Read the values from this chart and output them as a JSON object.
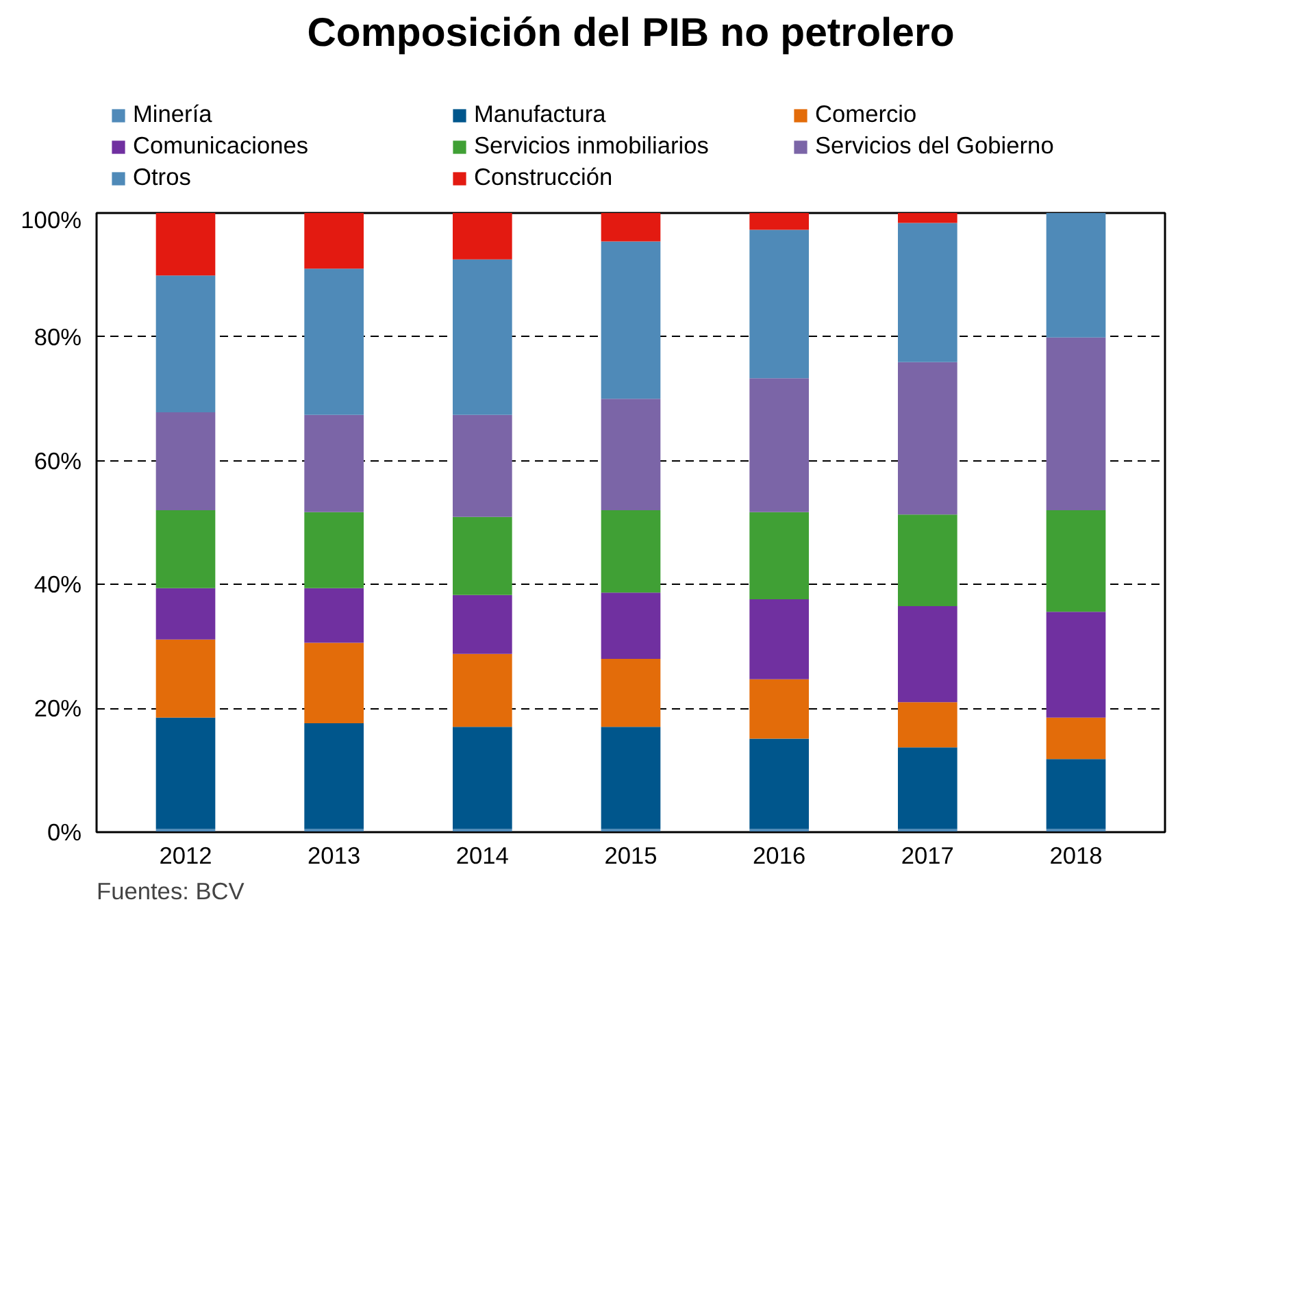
{
  "chart_data": {
    "type": "bar",
    "stacked": true,
    "title": "Composición del PIB no petrolero",
    "categories": [
      "2012",
      "2013",
      "2014",
      "2015",
      "2016",
      "2017",
      "2018"
    ],
    "series": [
      {
        "name": "Minería",
        "color": "#508ab9",
        "values": [
          0.5,
          0.5,
          0.5,
          0.5,
          0.5,
          0.5,
          0.5
        ]
      },
      {
        "name": "Manufactura",
        "color": "#00568c",
        "values": [
          18.0,
          17.1,
          16.5,
          16.5,
          14.6,
          13.2,
          11.3
        ]
      },
      {
        "name": "Comercio",
        "color": "#e36c0a",
        "values": [
          12.6,
          13.0,
          11.8,
          11.0,
          9.6,
          7.3,
          6.7
        ]
      },
      {
        "name": "Comunicaciones",
        "color": "#7030a0",
        "values": [
          8.3,
          8.8,
          9.5,
          10.7,
          12.9,
          15.5,
          17.1
        ]
      },
      {
        "name": "Servicios inmobiliarios",
        "color": "#40a035",
        "values": [
          12.6,
          12.3,
          12.6,
          13.3,
          14.1,
          14.8,
          16.4
        ]
      },
      {
        "name": "Servicios del Gobierno",
        "color": "#7b65a7",
        "values": [
          15.8,
          15.7,
          16.5,
          18.0,
          21.6,
          24.6,
          27.9
        ]
      },
      {
        "name": "Otros",
        "color": "#4f8ab8",
        "values": [
          22.1,
          23.6,
          25.1,
          25.4,
          24.0,
          22.5,
          20.1
        ]
      },
      {
        "name": "Construcción",
        "color": "#e31a11",
        "values": [
          10.1,
          9.0,
          7.5,
          4.6,
          2.7,
          1.6,
          0
        ]
      }
    ],
    "ylim": [
      0,
      100
    ],
    "yticks": [
      {
        "value": 0,
        "label": "0%"
      },
      {
        "value": 20,
        "label": "20%"
      },
      {
        "value": 40,
        "label": "40%"
      },
      {
        "value": 60,
        "label": "60%"
      },
      {
        "value": 80,
        "label": "80%"
      },
      {
        "value": 100,
        "label": "100%"
      }
    ],
    "grid": "y",
    "legend": "top",
    "line_style": "dashed",
    "annotations": [
      "Fuentes: BCV"
    ]
  }
}
